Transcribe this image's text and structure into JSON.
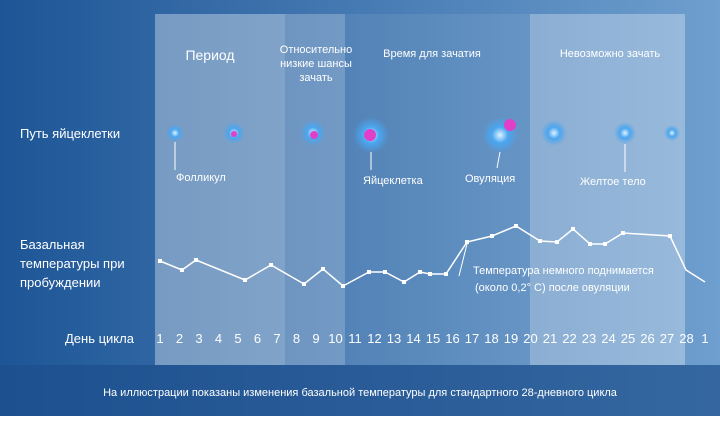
{
  "phases": {
    "period": "Период",
    "low_chance": [
      "Относительно",
      "низкие шансы",
      "зачать"
    ],
    "conception": "Время для зачатия",
    "impossible": "Невозможно зачать"
  },
  "rows": {
    "egg_path": "Путь яйцеклетки",
    "temperature": [
      "Базальная",
      "температуры при",
      "пробуждении"
    ],
    "cycle_day": "День цикла"
  },
  "egg_labels": {
    "follicle": "Фолликул",
    "egg": "Яйцеклетка",
    "ovulation": "Овуляция",
    "corpus_luteum": "Желтое тело"
  },
  "annotation": [
    "Температура немного поднимается",
    "(около 0,2° С) после овуляции"
  ],
  "days": [
    "1",
    "2",
    "3",
    "4",
    "5",
    "6",
    "7",
    "8",
    "9",
    "10",
    "11",
    "12",
    "13",
    "14",
    "15",
    "16",
    "17",
    "18",
    "19",
    "20",
    "21",
    "22",
    "23",
    "24",
    "25",
    "26",
    "27",
    "28",
    "1"
  ],
  "footer": "На иллюстрации показаны изменения базальной температуры для стандартного 28-дневного цикла"
}
